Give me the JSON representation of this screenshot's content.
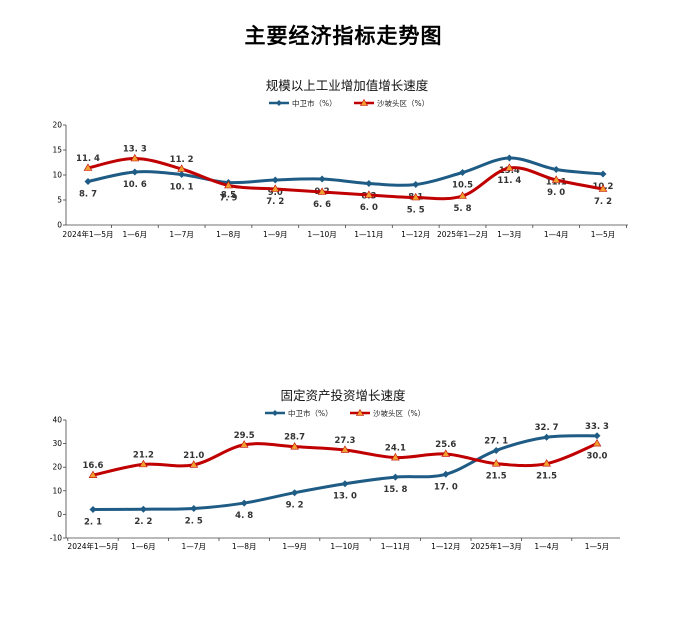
{
  "page": {
    "title": "主要经济指标走势图"
  },
  "chart_data": [
    {
      "type": "line",
      "title": "规模以上工业增加值增长速度",
      "categories": [
        "2024年1—5月",
        "1—6月",
        "1—7月",
        "1—8月",
        "1—9月",
        "1—10月",
        "1—11月",
        "1—12月",
        "2025年1—2月",
        "1—3月",
        "1—4月",
        "1—5月"
      ],
      "ylim": [
        0,
        20
      ],
      "yticks": [
        0,
        5,
        10,
        15,
        20
      ],
      "legend_position": "top-center",
      "series": [
        {
          "name": "中卫市（%）",
          "color": "#1f5c85",
          "marker": "diamond",
          "values": [
            8.7,
            10.6,
            10.1,
            8.5,
            9.0,
            9.2,
            8.3,
            8.1,
            10.5,
            13.4,
            11.1,
            10.2
          ]
        },
        {
          "name": "沙坡头区（%）",
          "color": "#c00000",
          "marker": "triangle",
          "values": [
            11.4,
            13.3,
            11.2,
            7.9,
            7.2,
            6.6,
            6.0,
            5.5,
            5.8,
            11.4,
            9.0,
            7.2
          ]
        }
      ]
    },
    {
      "type": "line",
      "title": "固定资产投资增长速度",
      "categories": [
        "2024年1—5月",
        "1—6月",
        "1—7月",
        "1—8月",
        "1—9月",
        "1—10月",
        "1—11月",
        "1—12月",
        "2025年1—3月",
        "1—4月",
        "1—5月"
      ],
      "ylim": [
        -10,
        40
      ],
      "yticks": [
        -10,
        0,
        10,
        20,
        30,
        40
      ],
      "legend_position": "top-center",
      "series": [
        {
          "name": "中卫市（%）",
          "color": "#1f5c85",
          "marker": "diamond",
          "values": [
            2.1,
            2.2,
            2.5,
            4.8,
            9.2,
            13.0,
            15.8,
            17.0,
            27.1,
            32.7,
            33.3
          ]
        },
        {
          "name": "沙坡头区（%）",
          "color": "#c00000",
          "marker": "triangle",
          "values": [
            16.6,
            21.2,
            21.0,
            29.5,
            28.7,
            27.3,
            24.1,
            25.6,
            21.5,
            21.5,
            30.0
          ]
        }
      ]
    }
  ]
}
